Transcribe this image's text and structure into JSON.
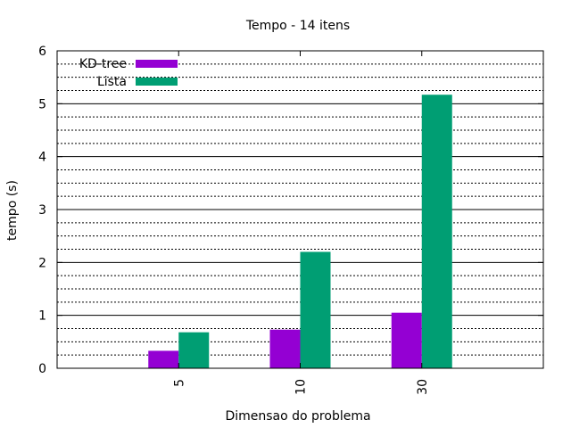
{
  "chart_data": {
    "type": "bar",
    "title": "Tempo - 14 itens",
    "xlabel": "Dimensao do problema",
    "ylabel": "tempo (s)",
    "categories": [
      "5",
      "10",
      "30"
    ],
    "series": [
      {
        "name": "KD-tree",
        "color": "#9400d3",
        "values": [
          0.33,
          0.73,
          1.05
        ]
      },
      {
        "name": "Lista",
        "color": "#009e73",
        "values": [
          0.68,
          2.2,
          5.17
        ]
      }
    ],
    "ylim": [
      0,
      6
    ],
    "xlim": [
      0,
      4
    ],
    "yticks": [
      0,
      1,
      2,
      3,
      4,
      5,
      6
    ],
    "minor_grid_step": 0.25,
    "grid": true,
    "legend_position": "top-left"
  }
}
